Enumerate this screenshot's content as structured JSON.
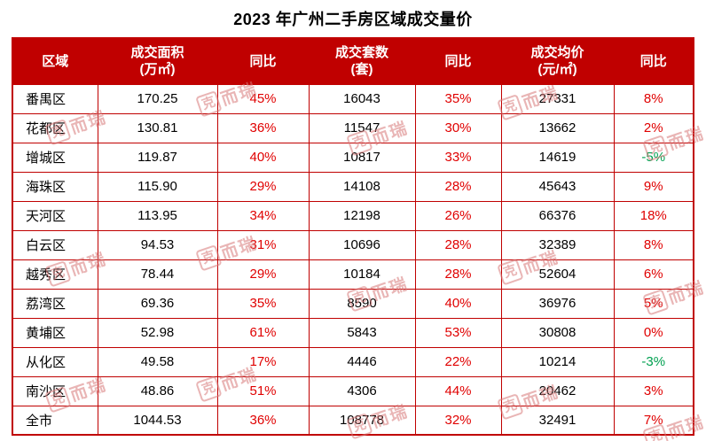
{
  "title": "2023 年广州二手房区域成交量价",
  "chart_data": {
    "type": "table",
    "title": "2023 年广州二手房区域成交量价",
    "columns": [
      {
        "label": "区域",
        "sub": ""
      },
      {
        "label": "成交面积",
        "sub": "(万㎡)"
      },
      {
        "label": "同比",
        "sub": ""
      },
      {
        "label": "成交套数",
        "sub": "(套)"
      },
      {
        "label": "同比",
        "sub": ""
      },
      {
        "label": "成交均价",
        "sub": "(元/㎡)"
      },
      {
        "label": "同比",
        "sub": ""
      }
    ],
    "rows": [
      {
        "region": "番禺区",
        "area": "170.25",
        "area_yoy": "45%",
        "units": "16043",
        "units_yoy": "35%",
        "price": "27331",
        "price_yoy": "8%"
      },
      {
        "region": "花都区",
        "area": "130.81",
        "area_yoy": "36%",
        "units": "11547",
        "units_yoy": "30%",
        "price": "13662",
        "price_yoy": "2%"
      },
      {
        "region": "增城区",
        "area": "119.87",
        "area_yoy": "40%",
        "units": "10817",
        "units_yoy": "33%",
        "price": "14619",
        "price_yoy": "-5%"
      },
      {
        "region": "海珠区",
        "area": "115.90",
        "area_yoy": "29%",
        "units": "14108",
        "units_yoy": "28%",
        "price": "45643",
        "price_yoy": "9%"
      },
      {
        "region": "天河区",
        "area": "113.95",
        "area_yoy": "34%",
        "units": "12198",
        "units_yoy": "26%",
        "price": "66376",
        "price_yoy": "18%"
      },
      {
        "region": "白云区",
        "area": "94.53",
        "area_yoy": "31%",
        "units": "10696",
        "units_yoy": "28%",
        "price": "32389",
        "price_yoy": "8%"
      },
      {
        "region": "越秀区",
        "area": "78.44",
        "area_yoy": "29%",
        "units": "10184",
        "units_yoy": "28%",
        "price": "52604",
        "price_yoy": "6%"
      },
      {
        "region": "荔湾区",
        "area": "69.36",
        "area_yoy": "35%",
        "units": "8590",
        "units_yoy": "40%",
        "price": "36976",
        "price_yoy": "5%"
      },
      {
        "region": "黄埔区",
        "area": "52.98",
        "area_yoy": "61%",
        "units": "5843",
        "units_yoy": "53%",
        "price": "30808",
        "price_yoy": "0%"
      },
      {
        "region": "从化区",
        "area": "49.58",
        "area_yoy": "17%",
        "units": "4446",
        "units_yoy": "22%",
        "price": "10214",
        "price_yoy": "-3%"
      },
      {
        "region": "南沙区",
        "area": "48.86",
        "area_yoy": "51%",
        "units": "4306",
        "units_yoy": "44%",
        "price": "20462",
        "price_yoy": "3%"
      },
      {
        "region": "全市",
        "area": "1044.53",
        "area_yoy": "36%",
        "units": "108778",
        "units_yoy": "32%",
        "price": "32491",
        "price_yoy": "7%"
      }
    ]
  },
  "watermark": {
    "logo_char": "克",
    "text": "而瑞"
  },
  "colors": {
    "header_bg": "#c00000",
    "border": "#c00000",
    "positive": "#e00000",
    "negative": "#00a050",
    "watermark": "#d87a7a"
  }
}
